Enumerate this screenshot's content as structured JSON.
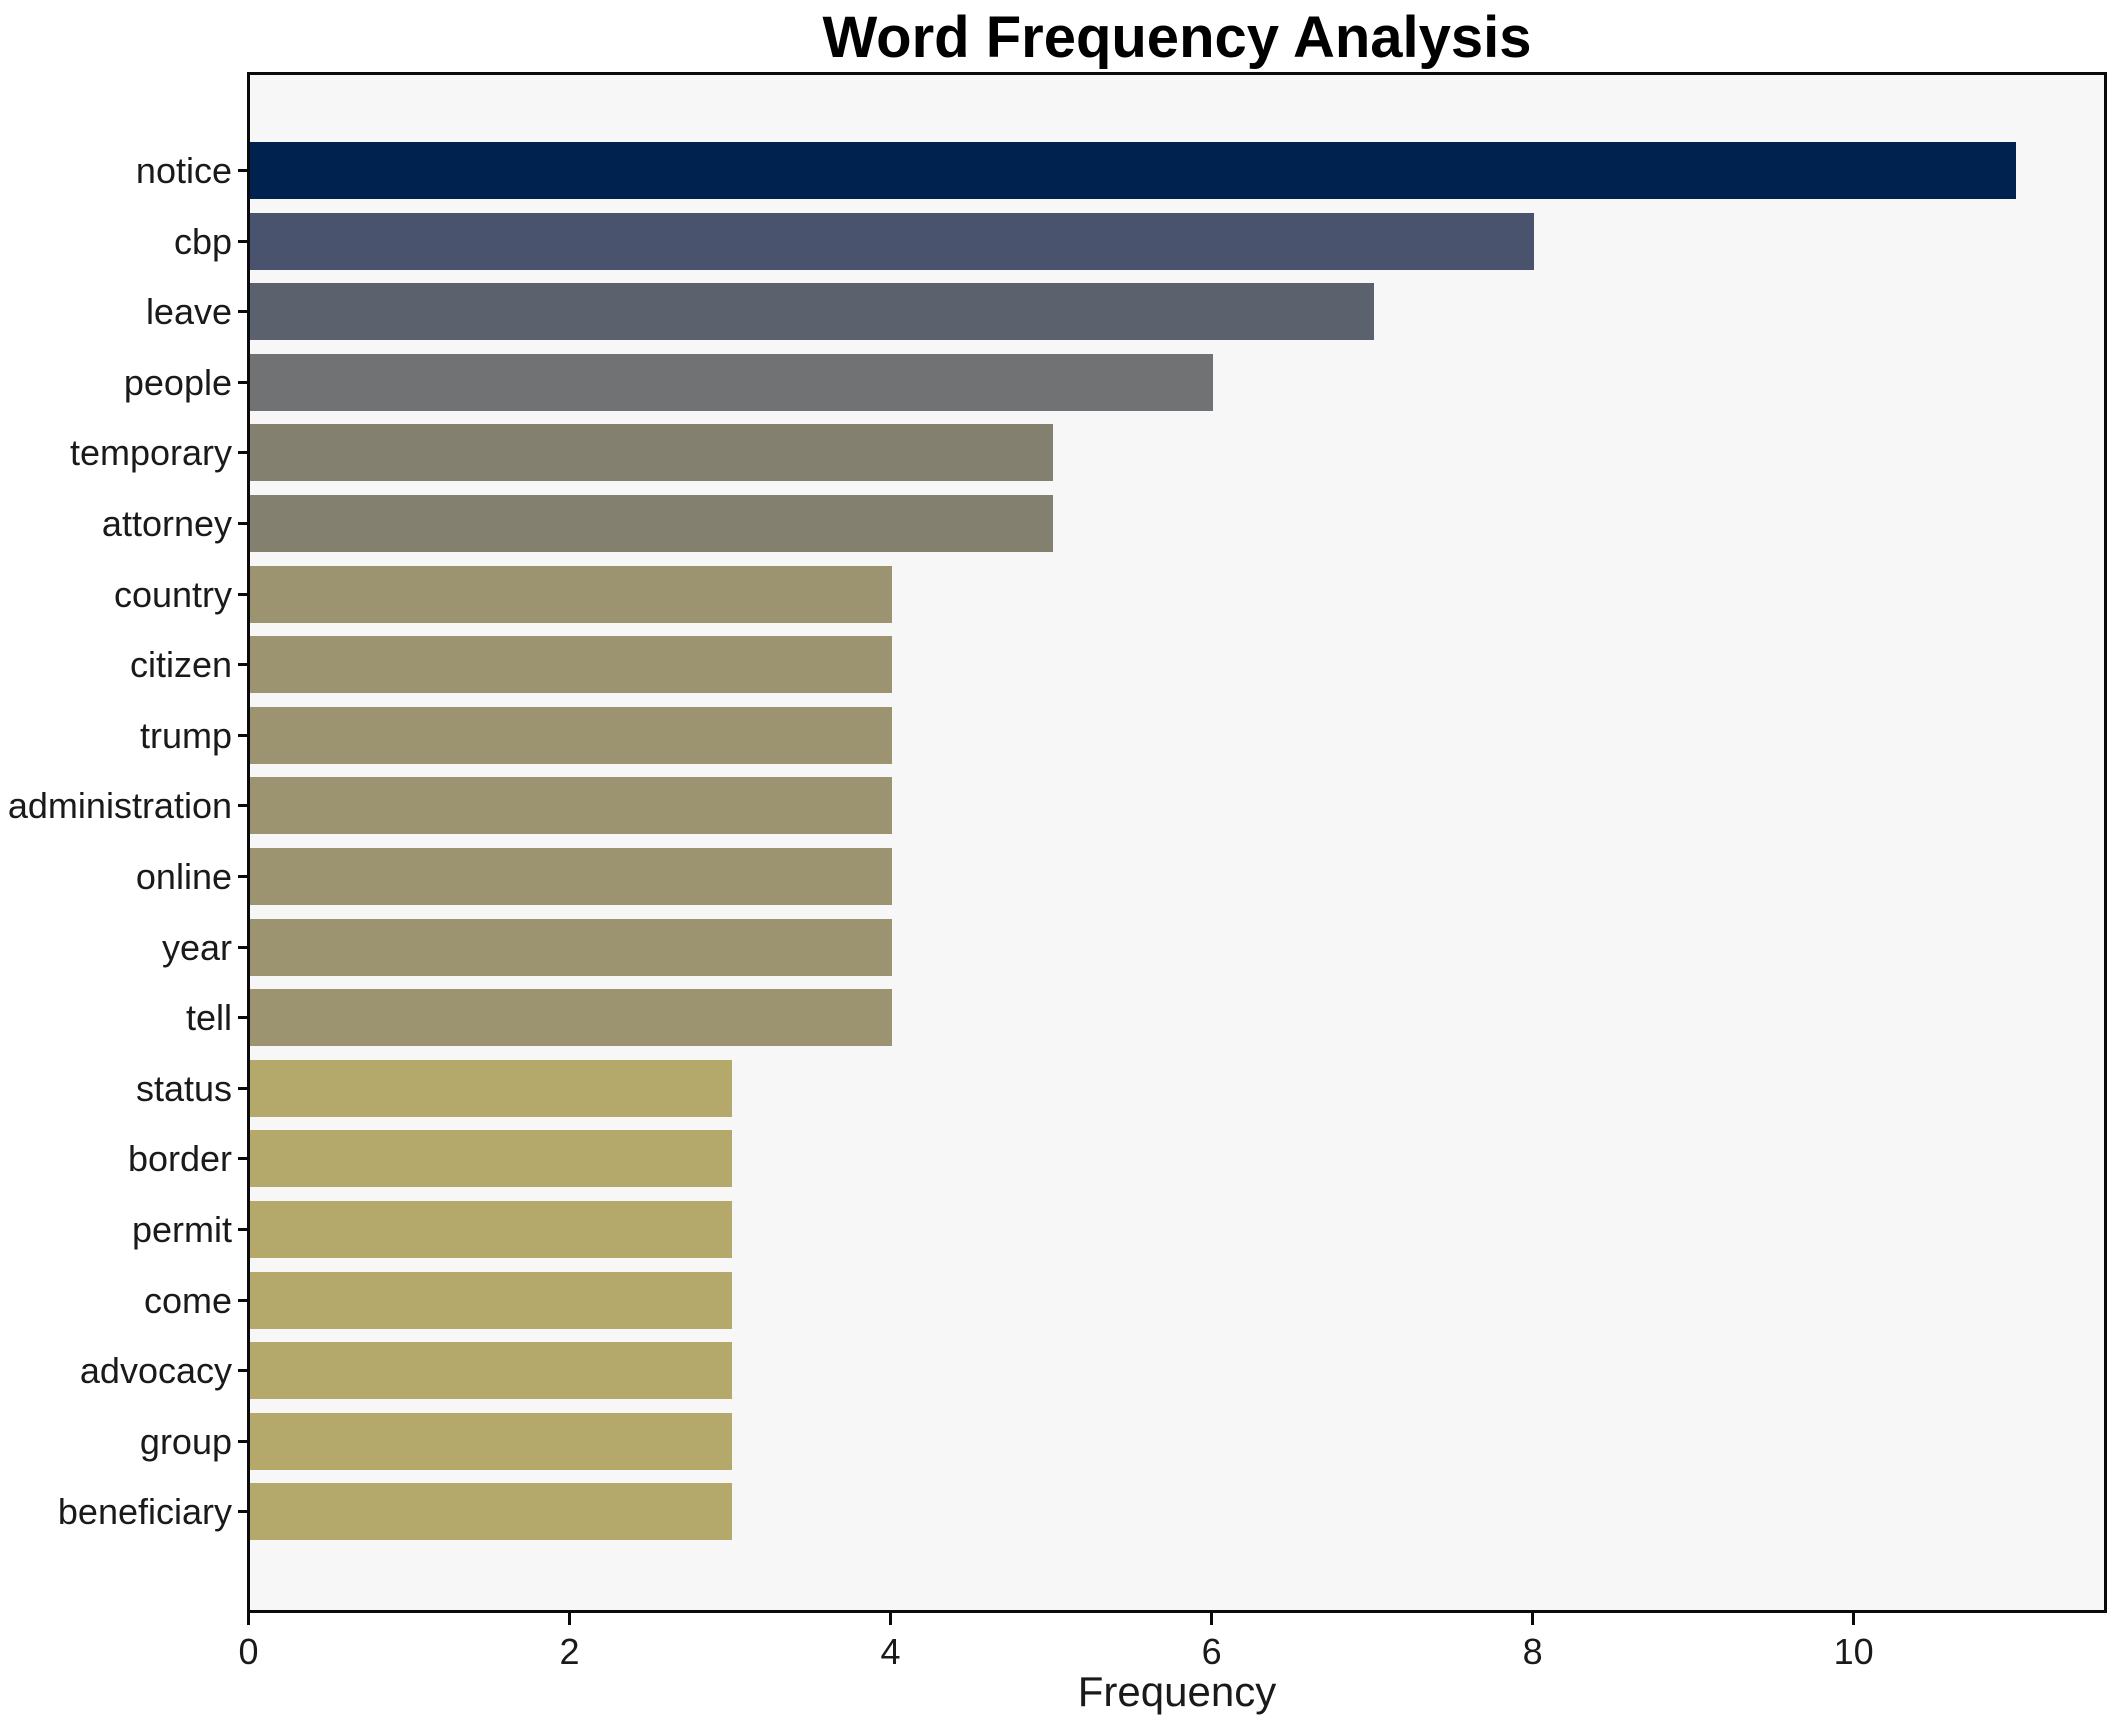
{
  "title": "Word Frequency Analysis",
  "chart_data": {
    "type": "bar",
    "orientation": "horizontal",
    "title": "Word Frequency Analysis",
    "xlabel": "Frequency",
    "ylabel": "",
    "categories": [
      "notice",
      "cbp",
      "leave",
      "people",
      "temporary",
      "attorney",
      "country",
      "citizen",
      "trump",
      "administration",
      "online",
      "year",
      "tell",
      "status",
      "border",
      "permit",
      "come",
      "advocacy",
      "group",
      "beneficiary"
    ],
    "values": [
      11,
      8,
      7,
      6,
      5,
      5,
      4,
      4,
      4,
      4,
      4,
      4,
      4,
      3,
      3,
      3,
      3,
      3,
      3,
      3
    ],
    "bar_colors": [
      "#00224e",
      "#49536e",
      "#5c616e",
      "#717274",
      "#84806f",
      "#84806f",
      "#9c9371",
      "#9c9371",
      "#9c9371",
      "#9c9371",
      "#9c9371",
      "#9c9371",
      "#9c9371",
      "#b4a96a",
      "#b4a96a",
      "#b4a96a",
      "#b4a96a",
      "#b4a96a",
      "#b4a96a",
      "#b4a96a"
    ],
    "xlim": [
      0,
      11.55
    ],
    "xticks": [
      0,
      2,
      4,
      6,
      8,
      10
    ],
    "xtick_labels": [
      "0",
      "2",
      "4",
      "6",
      "8",
      "10"
    ],
    "grid": false,
    "legend": null,
    "plot_background": "#f7f7f7",
    "figure_background": "#ffffff",
    "spine_color": "#0a0a0a",
    "text_color": "#1a1a1a"
  }
}
